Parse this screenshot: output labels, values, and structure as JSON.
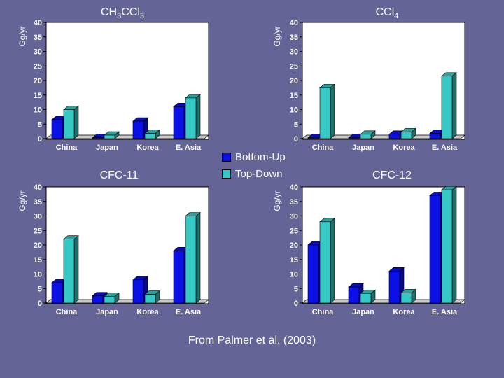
{
  "source_text": "From Palmer et al. (2003)",
  "legend": {
    "items": [
      {
        "label": "Bottom-Up",
        "color": "#0a10e6"
      },
      {
        "label": "Top-Down",
        "color": "#36c8c4"
      }
    ]
  },
  "chart_data": [
    {
      "type": "bar",
      "title": "CH3CCl3",
      "title_base": "CH",
      "title_sub1": "3",
      "title_mid": "CCl",
      "title_sub2": "3",
      "ylabel": "Gg/yr",
      "categories": [
        "China",
        "Japan",
        "Korea",
        "E. Asia"
      ],
      "ylim": [
        0,
        40
      ],
      "yticks": [
        0,
        5,
        10,
        15,
        20,
        25,
        30,
        35,
        40
      ],
      "series": [
        {
          "name": "Bottom-Up",
          "values": [
            6.5,
            0.3,
            6,
            11
          ]
        },
        {
          "name": "Top-Down",
          "values": [
            10,
            1.2,
            1.8,
            14
          ]
        }
      ]
    },
    {
      "type": "bar",
      "title": "CCl4",
      "title_base": "CCl",
      "title_sub1": "4",
      "title_mid": "",
      "title_sub2": "",
      "ylabel": "Gg/yr",
      "categories": [
        "China",
        "Japan",
        "Korea",
        "E. Asia"
      ],
      "ylim": [
        0,
        40
      ],
      "yticks": [
        0,
        5,
        10,
        15,
        20,
        25,
        30,
        35,
        40
      ],
      "series": [
        {
          "name": "Bottom-Up",
          "values": [
            0.3,
            0.3,
            1.5,
            1.8
          ]
        },
        {
          "name": "Top-Down",
          "values": [
            17.5,
            1.5,
            2.3,
            21.5
          ]
        }
      ]
    },
    {
      "type": "bar",
      "title": "CFC-11",
      "title_base": "CFC-11",
      "title_sub1": "",
      "title_mid": "",
      "title_sub2": "",
      "ylabel": "Gg/yr",
      "categories": [
        "China",
        "Japan",
        "Korea",
        "E. Asia"
      ],
      "ylim": [
        0,
        40
      ],
      "yticks": [
        0,
        5,
        10,
        15,
        20,
        25,
        30,
        35,
        40
      ],
      "series": [
        {
          "name": "Bottom-Up",
          "values": [
            7,
            2.5,
            8,
            18
          ]
        },
        {
          "name": "Top-Down",
          "values": [
            22,
            2.3,
            3,
            30
          ]
        }
      ]
    },
    {
      "type": "bar",
      "title": "CFC-12",
      "title_base": "CFC-12",
      "title_sub1": "",
      "title_mid": "",
      "title_sub2": "",
      "ylabel": "Gg/yr",
      "categories": [
        "China",
        "Japan",
        "Korea",
        "E. Asia"
      ],
      "ylim": [
        0,
        40
      ],
      "yticks": [
        0,
        5,
        10,
        15,
        20,
        25,
        30,
        35,
        40
      ],
      "series": [
        {
          "name": "Bottom-Up",
          "values": [
            20,
            5.5,
            11,
            37
          ]
        },
        {
          "name": "Top-Down",
          "values": [
            28,
            3.3,
            3.5,
            39
          ]
        }
      ]
    }
  ]
}
